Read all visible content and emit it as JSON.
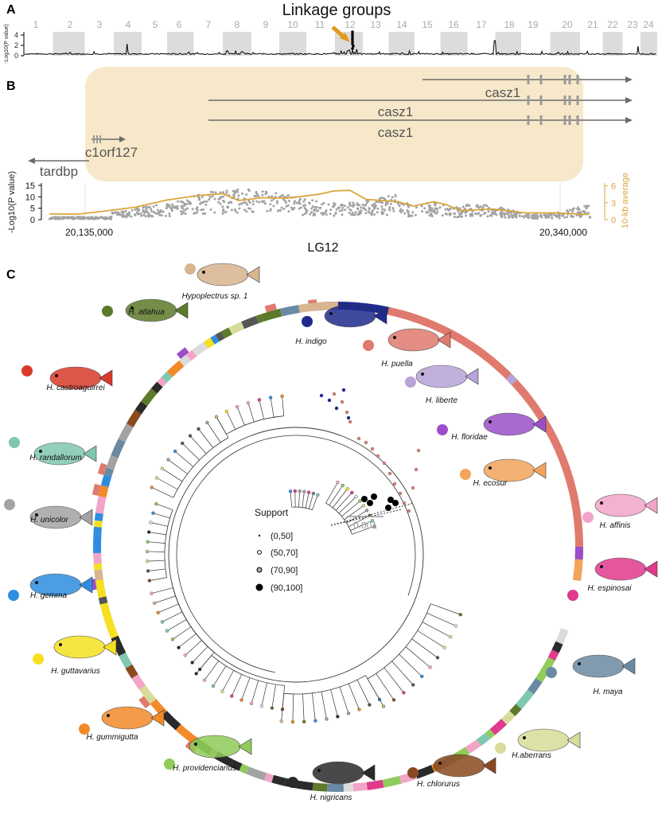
{
  "panels": {
    "a": "A",
    "b": "B",
    "c": "C"
  },
  "panel_a": {
    "title": "Linkage groups",
    "ylabel": "-Log10(P value)",
    "yticks": [
      "0",
      "2",
      "4"
    ],
    "chromosomes": [
      "1",
      "2",
      "3",
      "4",
      "5",
      "6",
      "7",
      "8",
      "9",
      "10",
      "11",
      "12",
      "13",
      "14",
      "15",
      "16",
      "17",
      "18",
      "19",
      "20",
      "21",
      "22",
      "23",
      "24"
    ]
  },
  "panel_b": {
    "genes": {
      "casz1_a": "casz1",
      "casz1_b": "casz1",
      "casz1_c": "casz1",
      "c1orf127": "c1orf127",
      "tardbp": "tardbp"
    },
    "ylabel_left": "-Log10(P value)",
    "ylabel_right": "10-kb average",
    "yticks_left": [
      "0",
      "5",
      "10",
      "15"
    ],
    "yticks_right": [
      "0",
      "3",
      "6"
    ],
    "xticks": [
      "20,135,000",
      "20,340,000"
    ],
    "xlabel": "LG12",
    "colors": {
      "highlight": "#f6e8c9",
      "average_line": "#d9a63a",
      "points": "#a3a3a3"
    }
  },
  "panel_c": {
    "legend_title": "Support",
    "legend": [
      "(0,50]",
      "(50,70]",
      "(70,90]",
      "(90,100]"
    ],
    "scale_bar": "0.001",
    "species": [
      {
        "name": "Hypoplectrus sp. 1",
        "color": "#d8b48f"
      },
      {
        "name": "H. atlahua",
        "color": "#5c7a2a"
      },
      {
        "name": "H. indigo",
        "color": "#1f2b8c"
      },
      {
        "name": "H. puella",
        "color": "#e07a6e"
      },
      {
        "name": "H. liberte",
        "color": "#b7a3d6"
      },
      {
        "name": "H. castroaguirrei",
        "color": "#d93a2a"
      },
      {
        "name": "H. floridae",
        "color": "#9a4fc9"
      },
      {
        "name": "H. randallorum",
        "color": "#7fc7b0"
      },
      {
        "name": "H. ecosur",
        "color": "#f2a55a"
      },
      {
        "name": "H. unicolor",
        "color": "#a3a3a3"
      },
      {
        "name": "H. affinis",
        "color": "#f2a5c8"
      },
      {
        "name": "H. gemma",
        "color": "#2f8de0"
      },
      {
        "name": "H. espinosai",
        "color": "#e03a8c"
      },
      {
        "name": "H. guttavarius",
        "color": "#f5e020"
      },
      {
        "name": "H. maya",
        "color": "#6a8aa3"
      },
      {
        "name": "H. gummigutta",
        "color": "#f28a2a"
      },
      {
        "name": "H.aberrans",
        "color": "#d8dc9a"
      },
      {
        "name": "H. providencianus",
        "color": "#8fcc5a"
      },
      {
        "name": "H. nigricans",
        "color": "#2a2a2a"
      },
      {
        "name": "H. chlorurus",
        "color": "#8a4a1f"
      }
    ]
  }
}
